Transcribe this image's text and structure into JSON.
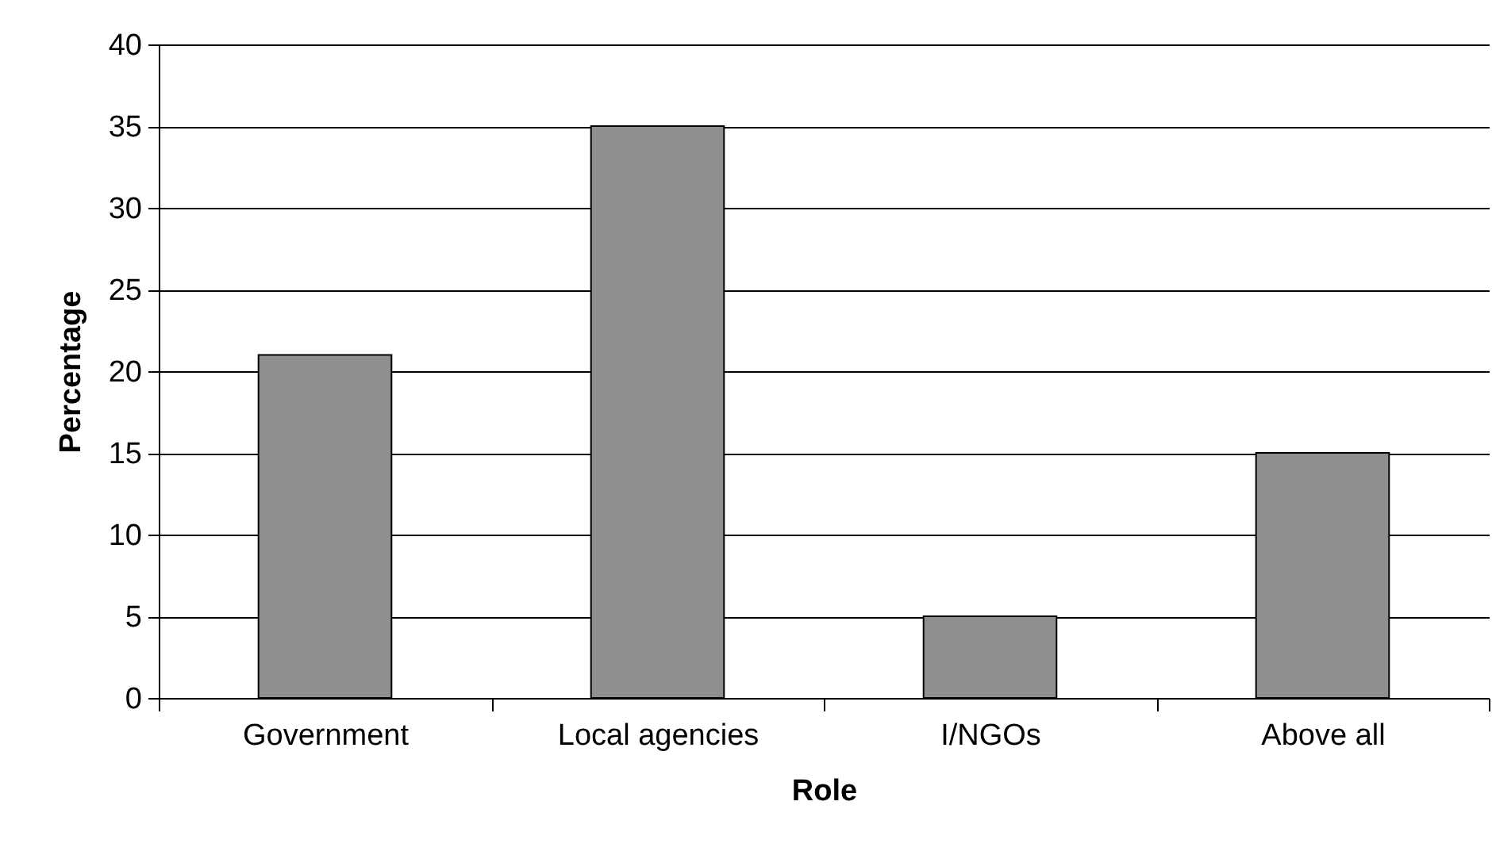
{
  "chart_data": {
    "type": "bar",
    "xlabel": "Role",
    "ylabel": "Percentage",
    "categories": [
      "Government",
      "Local agencies",
      "I/NGOs",
      "Above all"
    ],
    "values": [
      21,
      35,
      5,
      15
    ],
    "color": "#8f8f8f",
    "ylim": [
      0,
      40
    ],
    "yticks": [
      0,
      5,
      10,
      15,
      20,
      25,
      30,
      35,
      40
    ],
    "grid": "y"
  }
}
